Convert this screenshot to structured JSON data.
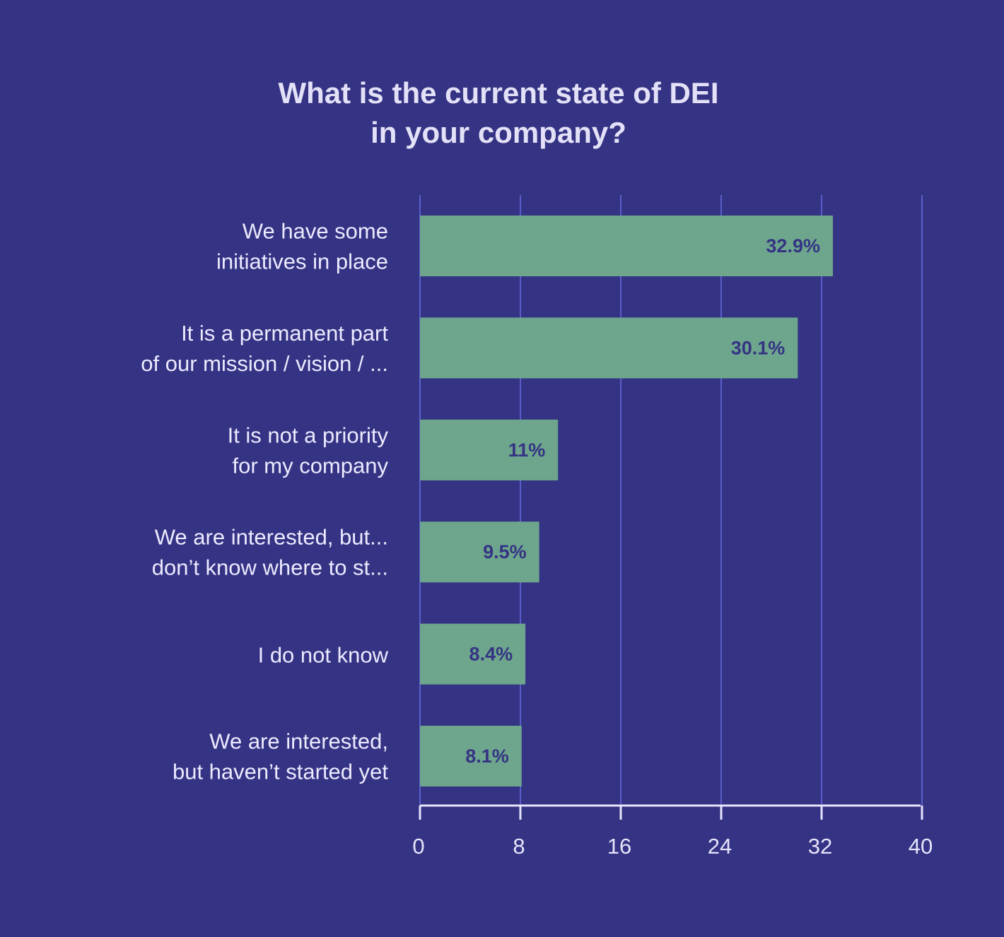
{
  "colors": {
    "background": "#353383",
    "bar": "#6da68d",
    "gridline": "#5a5ecb",
    "axis": "#e6e4fb",
    "text": "#eceaff",
    "value_label": "#353383"
  },
  "chart_data": {
    "type": "bar",
    "orientation": "horizontal",
    "title_lines": [
      "What is the current state of DEI",
      "in your company?"
    ],
    "categories": [
      [
        "We have some",
        "initiatives in place"
      ],
      [
        "It is a permanent part",
        "of our mission / vision / ..."
      ],
      [
        "It is not a priority",
        "for my company"
      ],
      [
        "We are interested, but...",
        "don’t know where to st..."
      ],
      [
        "I do not know"
      ],
      [
        "We are interested, ",
        "but haven’t started yet"
      ]
    ],
    "values": [
      32.9,
      30.1,
      11,
      9.5,
      8.4,
      8.1
    ],
    "value_labels": [
      "32.9%",
      "30.1%",
      "11%",
      "9.5%",
      "8.4%",
      "8.1%"
    ],
    "xlim": [
      0,
      40
    ],
    "x_ticks": [
      0,
      8,
      16,
      24,
      32,
      40
    ],
    "x_tick_labels": [
      "0",
      "8",
      "16",
      "24",
      "32",
      "40"
    ],
    "grid": true
  }
}
